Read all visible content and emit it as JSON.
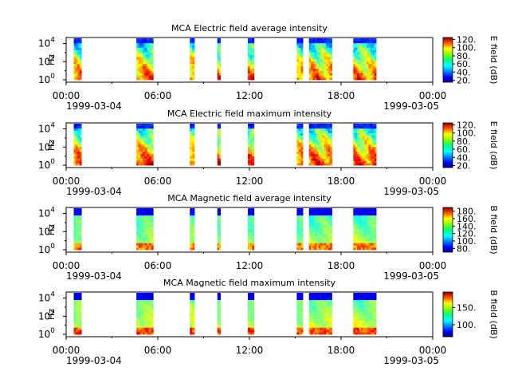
{
  "chart_data": [
    {
      "type": "heatmap",
      "title": "MCA  Electric field average intensity",
      "ylabel": "Hz",
      "y_scale": "log",
      "y_ticks": [
        {
          "base": "10",
          "exp": "0"
        },
        {
          "base": "10",
          "exp": "2"
        },
        {
          "base": "10",
          "exp": "4"
        }
      ],
      "x_ticks": [
        "00:00",
        "06:00",
        "12:00",
        "18:00",
        "00:00"
      ],
      "x_dates": {
        "start": "1999-03-04",
        "end": "1999-03-05"
      },
      "xlim": [
        "1999-03-04 00:00",
        "1999-03-05 00:00"
      ],
      "colorbar": {
        "label": "E field (dB)",
        "ticks": [
          "20.",
          "40.",
          "60.",
          "80.",
          "100.",
          "120."
        ],
        "range": [
          15,
          125
        ]
      },
      "colormap": "jet",
      "profile": "E_avg",
      "intervals": [
        [
          0.5,
          1.0
        ],
        [
          4.6,
          5.7
        ],
        [
          8.1,
          8.4
        ],
        [
          9.9,
          10.1
        ],
        [
          11.9,
          12.3
        ],
        [
          15.1,
          15.5
        ],
        [
          15.9,
          17.4
        ],
        [
          18.8,
          20.3
        ]
      ]
    },
    {
      "type": "heatmap",
      "title": "MCA  Electric field maximum intensity",
      "ylabel": "Hz",
      "y_scale": "log",
      "y_ticks": [
        {
          "base": "10",
          "exp": "0"
        },
        {
          "base": "10",
          "exp": "2"
        },
        {
          "base": "10",
          "exp": "4"
        }
      ],
      "x_ticks": [
        "00:00",
        "06:00",
        "12:00",
        "18:00",
        "00:00"
      ],
      "x_dates": {
        "start": "1999-03-04",
        "end": "1999-03-05"
      },
      "xlim": [
        "1999-03-04 00:00",
        "1999-03-05 00:00"
      ],
      "colorbar": {
        "label": "E field (dB)",
        "ticks": [
          "20.",
          "40.",
          "60.",
          "80.",
          "100.",
          "120."
        ],
        "range": [
          15,
          125
        ]
      },
      "colormap": "jet",
      "profile": "E_max",
      "intervals": [
        [
          0.5,
          1.0
        ],
        [
          4.6,
          5.7
        ],
        [
          8.1,
          8.4
        ],
        [
          9.9,
          10.1
        ],
        [
          11.9,
          12.3
        ],
        [
          15.1,
          15.5
        ],
        [
          15.9,
          17.4
        ],
        [
          18.8,
          20.3
        ]
      ]
    },
    {
      "type": "heatmap",
      "title": "MCA  Magnetic field average intensity",
      "ylabel": "Hz",
      "y_scale": "log",
      "y_ticks": [
        {
          "base": "10",
          "exp": "0"
        },
        {
          "base": "10",
          "exp": "2"
        },
        {
          "base": "10",
          "exp": "4"
        }
      ],
      "x_ticks": [
        "00:00",
        "06:00",
        "12:00",
        "18:00",
        "00:00"
      ],
      "x_dates": {
        "start": "1999-03-04",
        "end": "1999-03-05"
      },
      "xlim": [
        "1999-03-04 00:00",
        "1999-03-05 00:00"
      ],
      "colorbar": {
        "label": "B field (dB)",
        "ticks": [
          "80.",
          "100.",
          "120.",
          "140.",
          "160.",
          "180."
        ],
        "range": [
          70,
          190
        ]
      },
      "colormap": "jet",
      "profile": "B_avg",
      "intervals": [
        [
          0.5,
          1.0
        ],
        [
          4.6,
          5.7
        ],
        [
          8.1,
          8.4
        ],
        [
          9.9,
          10.1
        ],
        [
          11.9,
          12.3
        ],
        [
          15.1,
          15.5
        ],
        [
          15.9,
          17.4
        ],
        [
          18.8,
          20.3
        ]
      ]
    },
    {
      "type": "heatmap",
      "title": "MCA  Magnetic field maximum intensity",
      "ylabel": "Hz",
      "y_scale": "log",
      "y_ticks": [
        {
          "base": "10",
          "exp": "0"
        },
        {
          "base": "10",
          "exp": "2"
        },
        {
          "base": "10",
          "exp": "4"
        }
      ],
      "x_ticks": [
        "00:00",
        "06:00",
        "12:00",
        "18:00",
        "00:00"
      ],
      "x_dates": {
        "start": "1999-03-04",
        "end": "1999-03-05"
      },
      "xlim": [
        "1999-03-04 00:00",
        "1999-03-05 00:00"
      ],
      "colorbar": {
        "label": "B field (dB)",
        "ticks": [
          "100.",
          "150."
        ],
        "tick_values": [
          100,
          150
        ],
        "range": [
          65,
          195
        ]
      },
      "colormap": "jet",
      "profile": "B_max",
      "intervals": [
        [
          0.5,
          1.0
        ],
        [
          4.6,
          5.7
        ],
        [
          8.1,
          8.4
        ],
        [
          9.9,
          10.1
        ],
        [
          11.9,
          12.3
        ],
        [
          15.1,
          15.5
        ],
        [
          15.9,
          17.4
        ],
        [
          18.8,
          20.3
        ]
      ]
    }
  ]
}
